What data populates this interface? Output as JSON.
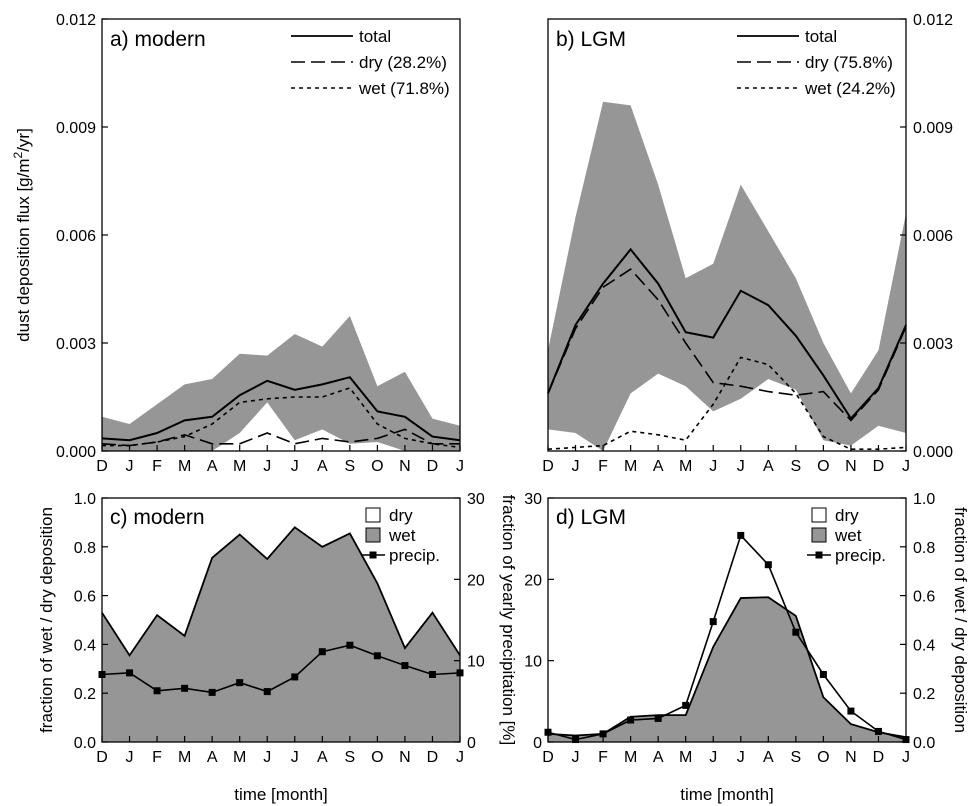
{
  "months": [
    "D",
    "J",
    "F",
    "M",
    "A",
    "M",
    "J",
    "J",
    "A",
    "S",
    "O",
    "N",
    "D",
    "J"
  ],
  "colors": {
    "band": "#969696",
    "wet_fill": "#969696",
    "line": "#000000",
    "background": "#ffffff"
  },
  "chart_data": [
    {
      "id": "a",
      "type": "line",
      "panel_label": "a) modern",
      "ylabel": "dust deposition flux [g/m",
      "ylabel_sup": "2",
      "ylabel_end": "/yr]",
      "ylim": [
        0,
        0.012
      ],
      "yticks": [
        "0.000",
        "0.003",
        "0.006",
        "0.009",
        "0.012"
      ],
      "xlabel": "",
      "categories": [
        "D",
        "J",
        "F",
        "M",
        "A",
        "M",
        "J",
        "J",
        "A",
        "S",
        "O",
        "N",
        "D",
        "J"
      ],
      "legend": [
        {
          "label": "total",
          "style": "solid"
        },
        {
          "label": "dry (28.2%)",
          "style": "dash"
        },
        {
          "label": "wet (71.8%)",
          "style": "dot"
        }
      ],
      "band": {
        "upper": [
          0.00095,
          0.00075,
          0.0013,
          0.00185,
          0.002,
          0.0027,
          0.00265,
          0.00325,
          0.0029,
          0.00375,
          0.0018,
          0.0022,
          0.0009,
          0.0007
        ],
        "lower": [
          0.0,
          0.0,
          0.0,
          0.0,
          0.0,
          0.0005,
          0.00135,
          0.0003,
          0.0006,
          0.0002,
          0.00025,
          0.0,
          0.0,
          0.0
        ]
      },
      "series": [
        {
          "name": "total",
          "style": "solid",
          "values": [
            0.00035,
            0.0003,
            0.0005,
            0.00085,
            0.00095,
            0.00155,
            0.00195,
            0.0017,
            0.00185,
            0.00205,
            0.0011,
            0.00095,
            0.0004,
            0.0003
          ]
        },
        {
          "name": "dry (28.2%)",
          "style": "dash",
          "values": [
            0.0002,
            0.00015,
            0.00025,
            0.00045,
            0.0002,
            0.0002,
            0.0005,
            0.0002,
            0.00035,
            0.00025,
            0.00035,
            0.0006,
            0.0002,
            0.0002
          ]
        },
        {
          "name": "wet (71.8%)",
          "style": "dot",
          "values": [
            0.00015,
            0.00015,
            0.00025,
            0.0004,
            0.00075,
            0.00135,
            0.00145,
            0.0015,
            0.0015,
            0.00175,
            0.00075,
            0.00035,
            0.0002,
            0.0001
          ]
        }
      ]
    },
    {
      "id": "b",
      "type": "line",
      "panel_label": "b) LGM",
      "ylim": [
        0,
        0.012
      ],
      "yticks": [
        "0.000",
        "0.003",
        "0.006",
        "0.009",
        "0.012"
      ],
      "categories": [
        "D",
        "J",
        "F",
        "M",
        "A",
        "M",
        "J",
        "J",
        "A",
        "S",
        "O",
        "N",
        "D",
        "J"
      ],
      "legend": [
        {
          "label": "total",
          "style": "solid"
        },
        {
          "label": "dry (75.8%)",
          "style": "dash"
        },
        {
          "label": "wet (24.2%)",
          "style": "dot"
        }
      ],
      "band": {
        "upper": [
          0.0028,
          0.0065,
          0.0097,
          0.0096,
          0.0074,
          0.0048,
          0.0052,
          0.0074,
          0.0061,
          0.0048,
          0.003,
          0.0016,
          0.0028,
          0.0066
        ],
        "lower": [
          0.0006,
          0.0005,
          0.0,
          0.0016,
          0.00215,
          0.0018,
          0.0011,
          0.00145,
          0.002,
          0.0017,
          0.0003,
          0.00015,
          0.0007,
          0.0005
        ]
      },
      "series": [
        {
          "name": "total",
          "style": "solid",
          "values": [
            0.0016,
            0.0035,
            0.00465,
            0.0056,
            0.00465,
            0.0033,
            0.00315,
            0.00445,
            0.00405,
            0.0032,
            0.0021,
            0.0009,
            0.00175,
            0.0035
          ]
        },
        {
          "name": "dry (75.8%)",
          "style": "dash",
          "values": [
            0.0016,
            0.0034,
            0.00455,
            0.00505,
            0.0042,
            0.003,
            0.0019,
            0.0018,
            0.00165,
            0.00155,
            0.00165,
            0.00085,
            0.0017,
            0.00345
          ]
        },
        {
          "name": "wet (24.2%)",
          "style": "dot",
          "values": [
            5e-05,
            0.0001,
            0.00015,
            0.00055,
            0.00045,
            0.0003,
            0.0013,
            0.0026,
            0.0024,
            0.0016,
            0.0004,
            5e-05,
            5e-05,
            0.0001
          ]
        }
      ]
    },
    {
      "id": "c",
      "type": "area",
      "panel_label": "c) modern",
      "ylabel": "fraction of wet / dry deposition",
      "ylabel2": "fraction of yearly precipitation [%]",
      "xlabel": "time [month]",
      "ylim": [
        0,
        1.0
      ],
      "y2lim": [
        0,
        30
      ],
      "yticks": [
        "0.0",
        "0.2",
        "0.4",
        "0.6",
        "0.8",
        "1.0"
      ],
      "y2ticks": [
        "0",
        "10",
        "20",
        "30"
      ],
      "categories": [
        "D",
        "J",
        "F",
        "M",
        "A",
        "M",
        "J",
        "J",
        "A",
        "S",
        "O",
        "N",
        "D",
        "J"
      ],
      "legend": [
        {
          "label": "dry",
          "style": "white-box"
        },
        {
          "label": "wet",
          "style": "grey-box"
        },
        {
          "label": "precip.",
          "style": "line-square"
        }
      ],
      "series": [
        {
          "name": "wet",
          "axis": "left",
          "values": [
            0.53,
            0.355,
            0.52,
            0.435,
            0.755,
            0.85,
            0.75,
            0.88,
            0.8,
            0.855,
            0.65,
            0.385,
            0.53,
            0.355
          ]
        },
        {
          "name": "precip.",
          "axis": "right",
          "values": [
            8.3,
            8.5,
            6.3,
            6.6,
            6.1,
            7.3,
            6.2,
            8.0,
            11.1,
            11.9,
            10.6,
            9.4,
            8.3,
            8.5
          ]
        }
      ]
    },
    {
      "id": "d",
      "type": "area",
      "panel_label": "d) LGM",
      "ylabel": "fraction of wet / dry deposition",
      "xlabel": "time [month]",
      "ylim": [
        0,
        1.0
      ],
      "y2lim": [
        0,
        30
      ],
      "yticks": [
        "0.0",
        "0.2",
        "0.4",
        "0.6",
        "0.8",
        "1.0"
      ],
      "y2ticks": [
        "0",
        "10",
        "20",
        "30"
      ],
      "categories": [
        "D",
        "J",
        "F",
        "M",
        "A",
        "M",
        "J",
        "J",
        "A",
        "S",
        "O",
        "N",
        "D",
        "J"
      ],
      "legend": [
        {
          "label": "dry",
          "style": "white-box"
        },
        {
          "label": "wet",
          "style": "grey-box"
        },
        {
          "label": "precip.",
          "style": "line-square"
        }
      ],
      "series": [
        {
          "name": "wet",
          "axis": "right",
          "values": [
            1.0,
            0.8,
            1.0,
            3.1,
            3.3,
            3.3,
            11.7,
            17.7,
            17.8,
            15.5,
            5.5,
            2.2,
            1.2,
            0.6
          ]
        },
        {
          "name": "precip.",
          "axis": "right",
          "values": [
            1.2,
            0.3,
            1.0,
            2.7,
            2.9,
            4.5,
            14.8,
            25.4,
            21.8,
            13.5,
            8.3,
            3.8,
            1.3,
            0.3
          ]
        }
      ]
    }
  ]
}
